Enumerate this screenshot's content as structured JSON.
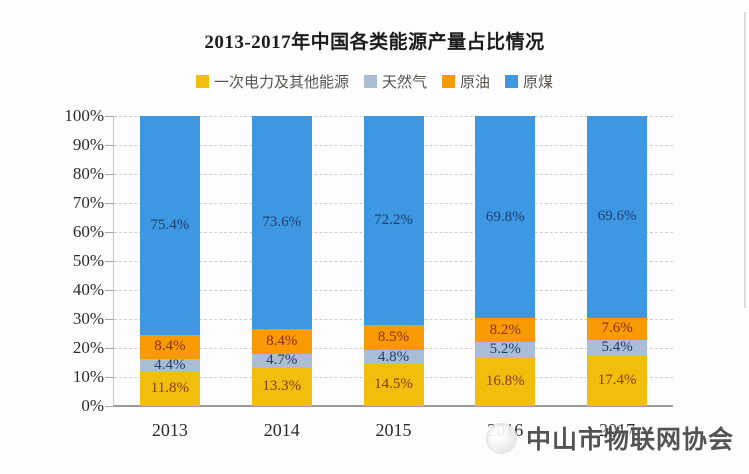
{
  "watermark": {
    "text": "中山市物联网协会"
  },
  "chart_data": {
    "type": "bar",
    "stacked": true,
    "title": "2013-2017年中国各类能源产量占比情况",
    "categories": [
      "2013",
      "2014",
      "2015",
      "2016",
      "2017"
    ],
    "series": [
      {
        "name": "一次电力及其他能源",
        "color": "#F2BE0D",
        "label_color": "#8C3612",
        "values": [
          11.8,
          13.3,
          14.5,
          16.8,
          17.4
        ]
      },
      {
        "name": "天然气",
        "color": "#A9BDD6",
        "label_color": "#1F3E6E",
        "values": [
          4.4,
          4.7,
          4.8,
          5.2,
          5.4
        ]
      },
      {
        "name": "原油",
        "color": "#F89A02",
        "label_color": "#8C2E10",
        "values": [
          8.4,
          8.4,
          8.5,
          8.2,
          7.6
        ]
      },
      {
        "name": "原煤",
        "color": "#3D97E3",
        "label_color": "#1F3E6E",
        "values": [
          75.4,
          73.6,
          72.2,
          69.8,
          69.6
        ]
      }
    ],
    "xlabel": "",
    "ylabel": "",
    "ylim": [
      0,
      100
    ],
    "ytick_step": 10,
    "ytick_suffix": "%",
    "value_suffix": "%",
    "grid": true,
    "legend_position": "top",
    "axis_color": "#9b9b9b",
    "gridline_color": "#cfcfcf"
  }
}
